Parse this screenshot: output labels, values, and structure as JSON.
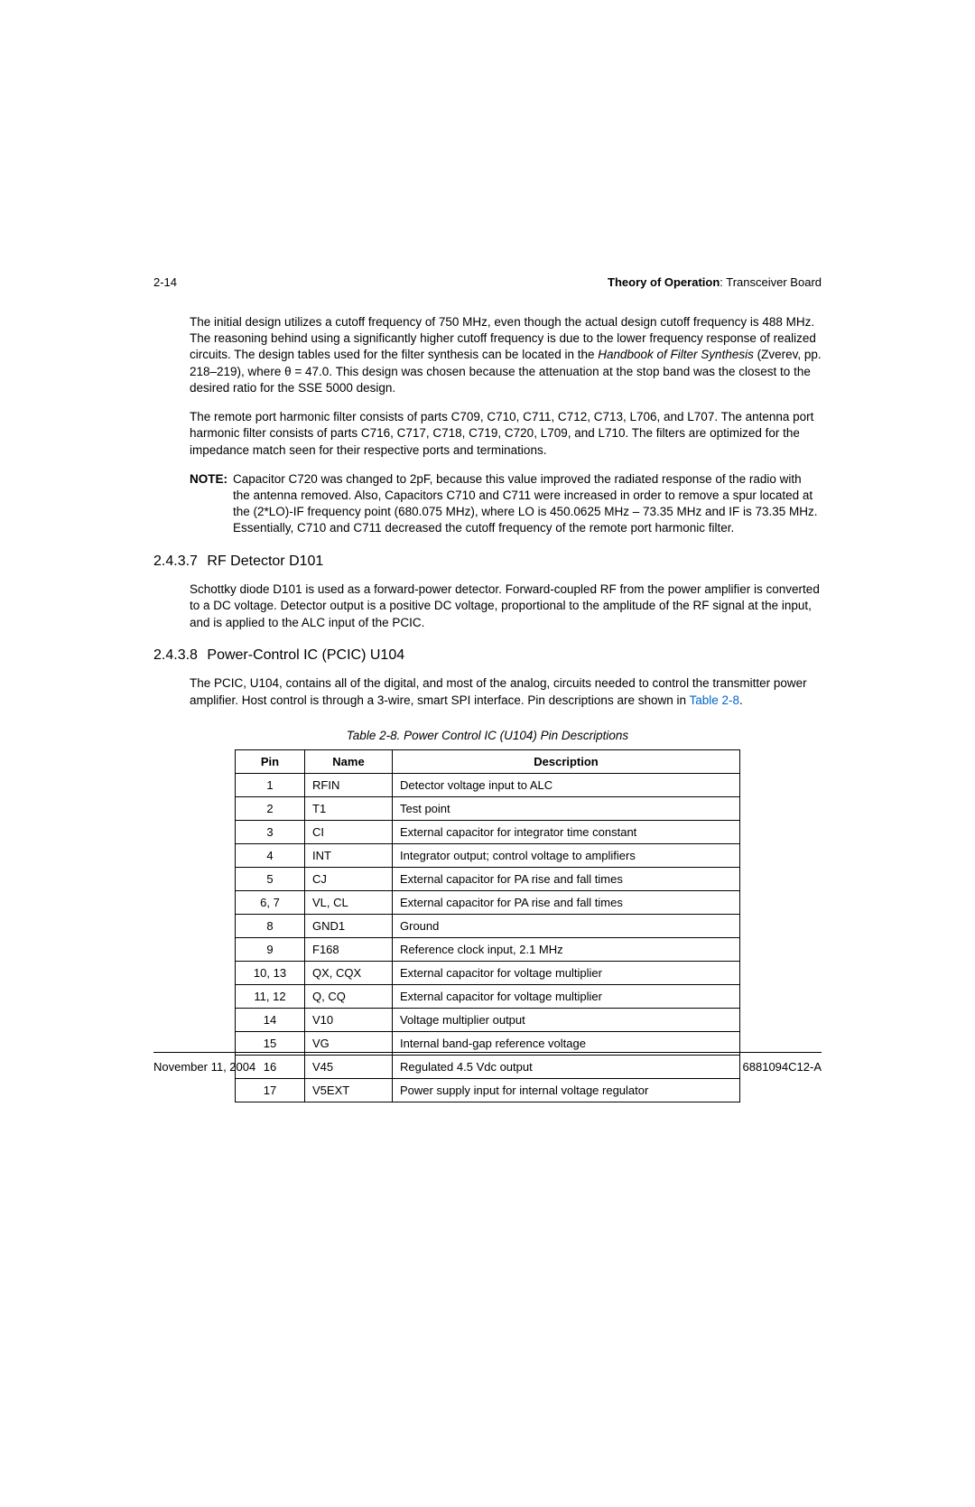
{
  "header": {
    "page_num": "2-14",
    "section_bold": "Theory of Operation",
    "section_rest": ": Transceiver Board"
  },
  "para1_a": "The initial design utilizes a cutoff frequency of 750 MHz, even though the actual design cutoff frequency is 488 MHz. The reasoning behind using a significantly higher cutoff frequency is due to the lower frequency response of realized circuits. The design tables used for the filter synthesis can be located in the ",
  "para1_italic": "Handbook of Filter Synthesis",
  "para1_b": " (Zverev, pp. 218–219), where θ = 47.0. This design was chosen because the attenuation at the stop band was the closest to the desired ratio for the SSE 5000 design.",
  "para2": "The remote port harmonic filter consists of parts C709, C710, C711, C712, C713, L706, and L707. The antenna port harmonic filter consists of parts C716, C717, C718, C719, C720, L709, and L710. The filters are optimized for the impedance match seen for their respective ports and terminations.",
  "note_label": "NOTE:",
  "note_body": "Capacitor C720 was changed to 2pF, because this value improved the radiated response of the radio with the antenna removed. Also, Capacitors C710 and C711 were increased in order to remove a spur located at the (2*LO)-IF frequency point (680.075 MHz), where LO is 450.0625 MHz – 73.35 MHz and IF is 73.35 MHz. Essentially, C710 and C711 decreased the cutoff frequency of the remote port harmonic filter.",
  "sec1_num": "2.4.3.7",
  "sec1_title": "RF Detector D101",
  "sec1_body": "Schottky diode D101 is used as a forward-power detector. Forward-coupled RF from the power amplifier is converted to a DC voltage. Detector output is a positive DC voltage, proportional to the amplitude of the RF signal at the input, and is applied to the ALC input of the PCIC.",
  "sec2_num": "2.4.3.8",
  "sec2_title": "Power-Control IC (PCIC) U104",
  "sec2_body_a": "The PCIC, U104, contains all of the digital, and most of the analog, circuits needed to control the transmitter power amplifier. Host control is through a 3-wire, smart SPI interface. Pin descriptions are shown in ",
  "sec2_link": "Table 2-8",
  "sec2_body_b": ".",
  "table_caption": "Table 2-8.  Power Control IC (U104) Pin Descriptions",
  "table": {
    "headers": {
      "pin": "Pin",
      "name": "Name",
      "desc": "Description"
    },
    "rows": [
      {
        "pin": "1",
        "name": "RFIN",
        "desc": "Detector voltage input to ALC"
      },
      {
        "pin": "2",
        "name": "T1",
        "desc": "Test point"
      },
      {
        "pin": "3",
        "name": "CI",
        "desc": "External capacitor for integrator time constant"
      },
      {
        "pin": "4",
        "name": "INT",
        "desc": "Integrator output; control voltage to amplifiers"
      },
      {
        "pin": "5",
        "name": "CJ",
        "desc": "External capacitor for PA rise and fall times"
      },
      {
        "pin": "6, 7",
        "name": "VL, CL",
        "desc": "External capacitor for PA rise and fall times"
      },
      {
        "pin": "8",
        "name": "GND1",
        "desc": "Ground"
      },
      {
        "pin": "9",
        "name": "F168",
        "desc": "Reference clock input, 2.1 MHz"
      },
      {
        "pin": "10, 13",
        "name": "QX, CQX",
        "desc": "External capacitor for voltage multiplier"
      },
      {
        "pin": "11, 12",
        "name": "Q, CQ",
        "desc": "External capacitor for voltage multiplier"
      },
      {
        "pin": "14",
        "name": "V10",
        "desc": "Voltage multiplier output"
      },
      {
        "pin": "15",
        "name": "VG",
        "desc": "Internal band-gap reference voltage"
      },
      {
        "pin": "16",
        "name": "V45",
        "desc": "Regulated 4.5 Vdc output"
      },
      {
        "pin": "17",
        "name": "V5EXT",
        "desc": "Power supply input for internal voltage regulator"
      }
    ]
  },
  "footer": {
    "date": "November 11, 2004",
    "docnum": "6881094C12-A"
  }
}
